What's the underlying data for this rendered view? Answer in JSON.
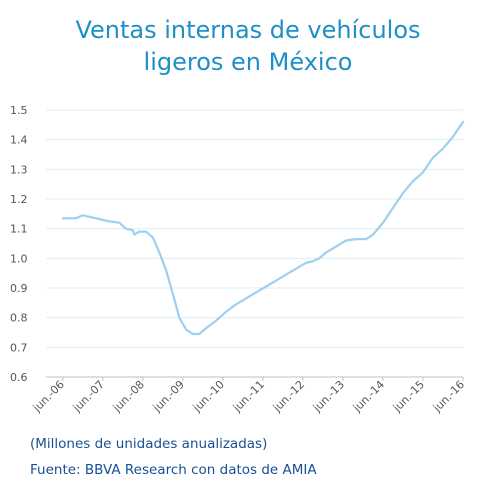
{
  "title_lines": [
    "Ventas internas de vehículos",
    "ligeros en México"
  ],
  "note": "(Millones de unidades anualizadas)",
  "source": "Fuente: BBVA Research con datos de AMIA",
  "colors": {
    "title": "#1f8fc7",
    "line": "#9dd0ee",
    "grid": "#d9eef8",
    "footer": "#1a4f96"
  },
  "chart_data": {
    "type": "line",
    "title": "Ventas internas de vehículos ligeros en México",
    "xlabel": "",
    "ylabel": "",
    "ylim": [
      0.6,
      1.5
    ],
    "yticks": [
      "0.6",
      "0.7",
      "0.8",
      "0.9",
      "1.0",
      "1.1",
      "1.2",
      "1.3",
      "1.4",
      "1.5"
    ],
    "grid": true,
    "legend": "none",
    "x_tick_labels": [
      "jun.-06",
      "jun.-07",
      "jun.-08",
      "jun.-09",
      "jun.-10",
      "jun.-11",
      "jun.-12",
      "jun.-13",
      "jun.-14",
      "jun.-15",
      "jun.-16"
    ],
    "series": [
      {
        "x": [
          2006.42,
          2006.75,
          2006.92,
          2007.25,
          2007.58,
          2007.83,
          2008.0,
          2008.17,
          2008.21,
          2008.33,
          2008.5,
          2008.67,
          2008.83,
          2009.0,
          2009.17,
          2009.33,
          2009.5,
          2009.67,
          2009.83,
          2010.0,
          2010.25,
          2010.5,
          2010.75,
          2011.0,
          2011.25,
          2011.5,
          2011.75,
          2012.0,
          2012.25,
          2012.5,
          2012.67,
          2012.83,
          2013.0,
          2013.25,
          2013.5,
          2013.75,
          2014.0,
          2014.17,
          2014.42,
          2014.67,
          2014.92,
          2015.17,
          2015.42,
          2015.67,
          2015.92,
          2016.17,
          2016.42
        ],
        "values": [
          1.135,
          1.135,
          1.145,
          1.135,
          1.125,
          1.12,
          1.1,
          1.095,
          1.08,
          1.09,
          1.09,
          1.07,
          1.02,
          0.96,
          0.88,
          0.8,
          0.76,
          0.745,
          0.745,
          0.765,
          0.79,
          0.82,
          0.845,
          0.865,
          0.885,
          0.905,
          0.925,
          0.945,
          0.965,
          0.985,
          0.99,
          1.0,
          1.02,
          1.04,
          1.06,
          1.065,
          1.065,
          1.08,
          1.12,
          1.17,
          1.22,
          1.26,
          1.29,
          1.34,
          1.37,
          1.41,
          1.46
        ]
      }
    ]
  }
}
